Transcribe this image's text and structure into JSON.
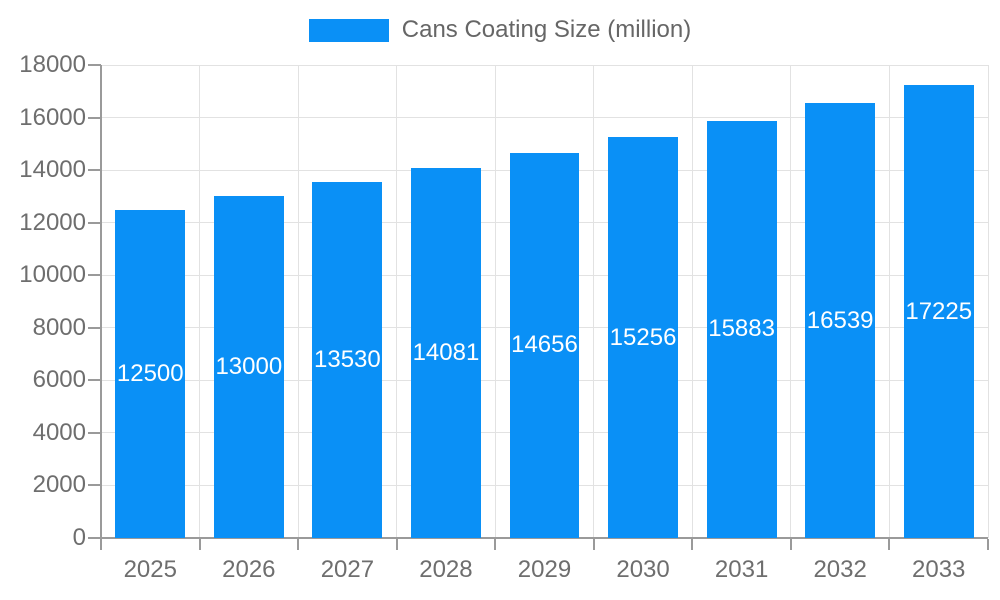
{
  "legend": {
    "series_label": "Cans Coating Size (million)"
  },
  "chart_data": {
    "type": "bar",
    "title": "Cans Coating Size (million)",
    "series": [
      {
        "name": "Cans Coating Size (million)",
        "values": [
          12500,
          13000,
          13530,
          14081,
          14656,
          15256,
          15883,
          16539,
          17225
        ]
      }
    ],
    "categories": [
      "2025",
      "2026",
      "2027",
      "2028",
      "2029",
      "2030",
      "2031",
      "2032",
      "2033"
    ],
    "value_labels_shown": true,
    "xlabel": "",
    "ylabel": "",
    "ylim": [
      0,
      18000
    ],
    "ytick_step": 2000,
    "yticks": [
      0,
      2000,
      4000,
      6000,
      8000,
      10000,
      12000,
      14000,
      16000,
      18000
    ],
    "grid": true,
    "legend_position": "top-center",
    "colors": {
      "bar": "#0a90f6",
      "grid": "#e2e2e2",
      "axis": "#9a9a9a",
      "text": "#6e6e6e",
      "value_label": "#ffffff"
    }
  }
}
